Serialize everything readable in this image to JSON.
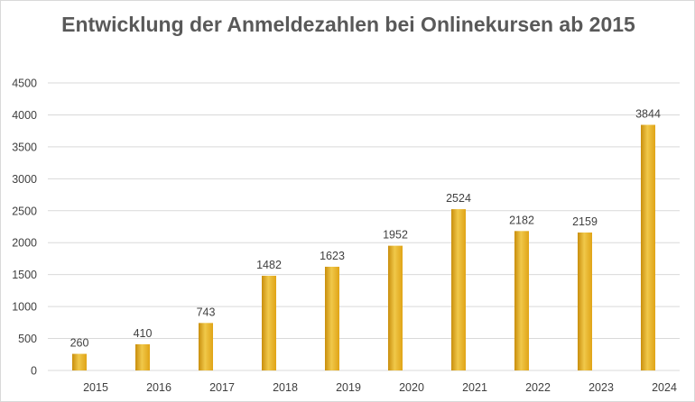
{
  "chart_data": {
    "type": "bar",
    "title": "Entwicklung der Anmeldezahlen bei Onlinekursen ab 2015",
    "categories": [
      "2015",
      "2016",
      "2017",
      "2018",
      "2019",
      "2020",
      "2021",
      "2022",
      "2023",
      "2024"
    ],
    "values": [
      260,
      410,
      743,
      1482,
      1623,
      1952,
      2524,
      2182,
      2159,
      3844
    ],
    "ylim": [
      0,
      4500
    ],
    "yticks": [
      0,
      500,
      1000,
      1500,
      2000,
      2500,
      3000,
      3500,
      4000,
      4500
    ],
    "grid": true,
    "legend": "none",
    "colors": {
      "bar": "#E0A416",
      "bar_light": "#F0C84A",
      "bar_dark": "#C98E0C",
      "grid": "#d9d9d9"
    }
  }
}
